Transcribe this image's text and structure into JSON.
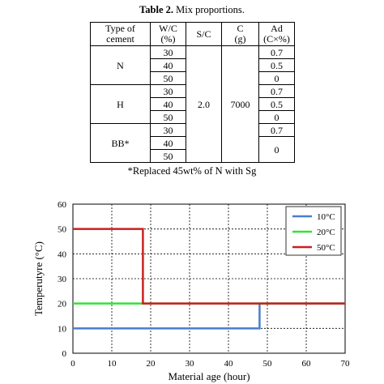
{
  "table": {
    "caption_label": "Table 2.",
    "caption_text": " Mix proportions.",
    "headers": {
      "type": [
        "Type of",
        "cement"
      ],
      "wc": [
        "W/C",
        "(%)"
      ],
      "sc": [
        "S/C"
      ],
      "c": [
        "C",
        "(g)"
      ],
      "ad": [
        "Ad",
        "(C×%)"
      ]
    },
    "groups": [
      {
        "type": "N",
        "wc": [
          "30",
          "40",
          "50"
        ],
        "ad": [
          "0.7",
          "0.5",
          "0"
        ]
      },
      {
        "type": "H",
        "wc": [
          "30",
          "40",
          "50"
        ],
        "ad": [
          "0.7",
          "0.5",
          "0"
        ]
      },
      {
        "type": "BB*",
        "wc": [
          "30",
          "40",
          "50"
        ],
        "ad": [
          "0.7",
          "0"
        ]
      }
    ],
    "sc_value": "2.0",
    "c_value": "7000",
    "footnote": "*Replaced 45wt% of N with Sg"
  },
  "chart_data": {
    "type": "line",
    "xlabel": "Material age (hour)",
    "ylabel": "Temperutyre (°C)",
    "xlim": [
      0,
      70
    ],
    "ylim": [
      0,
      60
    ],
    "xticks": [
      0,
      10,
      20,
      30,
      40,
      50,
      60,
      70
    ],
    "yticks": [
      0,
      10,
      20,
      30,
      40,
      50,
      60
    ],
    "grid": true,
    "legend_position": "top-right",
    "series": [
      {
        "name": "10°C",
        "color": "#4a7fc8",
        "x": [
          0,
          48,
          48,
          70
        ],
        "y": [
          10,
          10,
          20,
          20
        ]
      },
      {
        "name": "20°C",
        "color": "#33e233",
        "x": [
          0,
          18,
          18,
          70
        ],
        "y": [
          20,
          20,
          20,
          20
        ]
      },
      {
        "name": "50°C",
        "color": "#cc1f1f",
        "x": [
          0,
          18,
          18,
          70
        ],
        "y": [
          50,
          50,
          20,
          20
        ]
      }
    ]
  }
}
